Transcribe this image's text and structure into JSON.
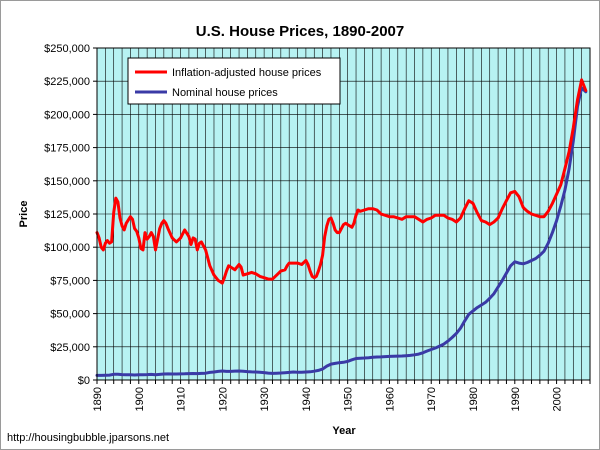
{
  "source_text": "http://housingbubble.jparsons.net",
  "chart_data": {
    "type": "line",
    "title": "U.S. House Prices, 1890-2007",
    "xlabel": "Year",
    "ylabel": "Price",
    "xlim": [
      1890,
      2008
    ],
    "ylim": [
      0,
      250000
    ],
    "x_ticks": [
      1890,
      1900,
      1910,
      1920,
      1930,
      1940,
      1950,
      1960,
      1970,
      1980,
      1990,
      2000
    ],
    "y_ticks": [
      0,
      25000,
      50000,
      75000,
      100000,
      125000,
      150000,
      175000,
      200000,
      225000,
      250000
    ],
    "y_tick_labels": [
      "$0",
      "$25,000",
      "$50,000",
      "$75,000",
      "$100,000",
      "$125,000",
      "$150,000",
      "$175,000",
      "$200,000",
      "$225,000",
      "$250,000"
    ],
    "grid": true,
    "legend_position": "top-left",
    "plot_background": "#b7f2f2",
    "series": [
      {
        "name": "Inflation-adjusted house prices",
        "color": "#ff0000",
        "points": [
          [
            1890,
            111000
          ],
          [
            1890.5,
            107000
          ],
          [
            1891,
            100000
          ],
          [
            1891.5,
            98000
          ],
          [
            1892,
            103000
          ],
          [
            1892.5,
            105000
          ],
          [
            1893,
            103000
          ],
          [
            1893.5,
            104000
          ],
          [
            1894,
            126000
          ],
          [
            1894.5,
            137000
          ],
          [
            1895,
            134000
          ],
          [
            1895.5,
            122000
          ],
          [
            1896,
            116000
          ],
          [
            1896.5,
            113000
          ],
          [
            1897,
            118000
          ],
          [
            1898,
            123000
          ],
          [
            1898.5,
            121000
          ],
          [
            1899,
            114000
          ],
          [
            1899.5,
            112000
          ],
          [
            1900,
            107000
          ],
          [
            1900.5,
            99000
          ],
          [
            1901,
            98000
          ],
          [
            1901.5,
            111000
          ],
          [
            1902,
            106000
          ],
          [
            1902.5,
            108000
          ],
          [
            1903,
            111000
          ],
          [
            1903.5,
            108000
          ],
          [
            1904,
            98000
          ],
          [
            1904.5,
            106000
          ],
          [
            1905,
            114000
          ],
          [
            1905.5,
            118000
          ],
          [
            1906,
            120000
          ],
          [
            1906.5,
            118000
          ],
          [
            1907,
            114000
          ],
          [
            1908,
            107000
          ],
          [
            1909,
            104000
          ],
          [
            1910,
            107000
          ],
          [
            1910.5,
            110000
          ],
          [
            1911,
            113000
          ],
          [
            1912,
            108000
          ],
          [
            1912.5,
            102000
          ],
          [
            1913,
            107000
          ],
          [
            1913.5,
            106000
          ],
          [
            1914,
            98000
          ],
          [
            1914.5,
            103000
          ],
          [
            1915,
            104000
          ],
          [
            1916,
            98000
          ],
          [
            1916.5,
            92000
          ],
          [
            1917,
            86000
          ],
          [
            1918,
            79000
          ],
          [
            1919,
            75000
          ],
          [
            1920,
            73000
          ],
          [
            1920.5,
            77000
          ],
          [
            1921,
            82000
          ],
          [
            1921.5,
            86000
          ],
          [
            1922,
            85000
          ],
          [
            1923,
            83000
          ],
          [
            1923.5,
            85000
          ],
          [
            1924,
            87000
          ],
          [
            1924.5,
            85000
          ],
          [
            1925,
            79000
          ],
          [
            1926,
            80000
          ],
          [
            1927,
            81000
          ],
          [
            1928,
            80000
          ],
          [
            1929,
            78000
          ],
          [
            1930,
            77000
          ],
          [
            1931,
            76000
          ],
          [
            1932,
            76000
          ],
          [
            1933,
            79000
          ],
          [
            1934,
            82000
          ],
          [
            1935,
            83000
          ],
          [
            1935.5,
            86000
          ],
          [
            1936,
            88000
          ],
          [
            1937,
            88000
          ],
          [
            1938,
            88000
          ],
          [
            1939,
            87000
          ],
          [
            1940,
            90000
          ],
          [
            1940.5,
            87000
          ],
          [
            1941,
            82000
          ],
          [
            1941.5,
            78000
          ],
          [
            1942,
            77000
          ],
          [
            1942.5,
            78000
          ],
          [
            1943,
            82000
          ],
          [
            1943.5,
            87000
          ],
          [
            1944,
            94000
          ],
          [
            1944.5,
            108000
          ],
          [
            1945,
            116000
          ],
          [
            1945.5,
            121000
          ],
          [
            1946,
            122000
          ],
          [
            1946.5,
            118000
          ],
          [
            1947,
            113000
          ],
          [
            1947.5,
            111000
          ],
          [
            1948,
            111000
          ],
          [
            1948.5,
            114000
          ],
          [
            1949,
            117000
          ],
          [
            1949.5,
            118000
          ],
          [
            1950,
            117000
          ],
          [
            1951,
            115000
          ],
          [
            1951.5,
            118000
          ],
          [
            1952,
            124000
          ],
          [
            1952.5,
            128000
          ],
          [
            1953,
            127000
          ],
          [
            1954,
            128000
          ],
          [
            1955,
            129000
          ],
          [
            1956,
            129000
          ],
          [
            1957,
            128000
          ],
          [
            1958,
            125000
          ],
          [
            1959,
            124000
          ],
          [
            1960,
            123000
          ],
          [
            1961,
            123000
          ],
          [
            1962,
            122000
          ],
          [
            1963,
            121000
          ],
          [
            1964,
            123000
          ],
          [
            1965,
            123000
          ],
          [
            1966,
            123000
          ],
          [
            1967,
            121000
          ],
          [
            1968,
            119000
          ],
          [
            1969,
            121000
          ],
          [
            1970,
            122000
          ],
          [
            1971,
            124000
          ],
          [
            1972,
            124000
          ],
          [
            1973,
            124000
          ],
          [
            1974,
            122000
          ],
          [
            1975,
            121000
          ],
          [
            1976,
            119000
          ],
          [
            1977,
            122000
          ],
          [
            1978,
            129000
          ],
          [
            1979,
            135000
          ],
          [
            1980,
            133000
          ],
          [
            1981,
            126000
          ],
          [
            1982,
            120000
          ],
          [
            1983,
            119000
          ],
          [
            1984,
            117000
          ],
          [
            1985,
            119000
          ],
          [
            1986,
            122000
          ],
          [
            1987,
            129000
          ],
          [
            1988,
            135000
          ],
          [
            1989,
            141000
          ],
          [
            1990,
            142000
          ],
          [
            1991,
            138000
          ],
          [
            1992,
            130000
          ],
          [
            1993,
            127000
          ],
          [
            1994,
            125000
          ],
          [
            1995,
            124000
          ],
          [
            1996,
            123000
          ],
          [
            1997,
            123000
          ],
          [
            1998,
            127000
          ],
          [
            1999,
            133000
          ],
          [
            2000,
            140000
          ],
          [
            2001,
            147000
          ],
          [
            2002,
            159000
          ],
          [
            2003,
            172000
          ],
          [
            2004,
            190000
          ],
          [
            2005,
            211000
          ],
          [
            2006,
            226000
          ],
          [
            2007,
            218000
          ]
        ]
      },
      {
        "name": "Nominal house prices",
        "color": "#3a3aa6",
        "points": [
          [
            1890,
            3500
          ],
          [
            1891,
            3500
          ],
          [
            1892,
            3600
          ],
          [
            1893,
            3700
          ],
          [
            1894,
            4300
          ],
          [
            1895,
            4400
          ],
          [
            1896,
            4100
          ],
          [
            1897,
            3900
          ],
          [
            1898,
            3900
          ],
          [
            1899,
            3800
          ],
          [
            1900,
            3900
          ],
          [
            1901,
            4000
          ],
          [
            1902,
            4100
          ],
          [
            1903,
            4200
          ],
          [
            1904,
            3900
          ],
          [
            1905,
            4200
          ],
          [
            1906,
            4500
          ],
          [
            1907,
            4600
          ],
          [
            1908,
            4500
          ],
          [
            1909,
            4500
          ],
          [
            1910,
            4600
          ],
          [
            1911,
            4700
          ],
          [
            1912,
            4800
          ],
          [
            1913,
            4900
          ],
          [
            1914,
            4800
          ],
          [
            1915,
            5000
          ],
          [
            1916,
            5100
          ],
          [
            1917,
            5700
          ],
          [
            1918,
            6000
          ],
          [
            1919,
            6500
          ],
          [
            1920,
            6800
          ],
          [
            1921,
            6500
          ],
          [
            1922,
            6500
          ],
          [
            1923,
            6700
          ],
          [
            1924,
            6800
          ],
          [
            1925,
            6600
          ],
          [
            1926,
            6300
          ],
          [
            1927,
            6100
          ],
          [
            1928,
            6000
          ],
          [
            1929,
            5900
          ],
          [
            1930,
            5600
          ],
          [
            1931,
            5200
          ],
          [
            1932,
            5000
          ],
          [
            1933,
            5100
          ],
          [
            1934,
            5300
          ],
          [
            1935,
            5500
          ],
          [
            1936,
            5700
          ],
          [
            1937,
            6000
          ],
          [
            1938,
            5900
          ],
          [
            1939,
            5800
          ],
          [
            1940,
            6000
          ],
          [
            1941,
            6200
          ],
          [
            1942,
            6600
          ],
          [
            1943,
            7200
          ],
          [
            1944,
            8300
          ],
          [
            1945,
            10500
          ],
          [
            1946,
            12000
          ],
          [
            1947,
            12500
          ],
          [
            1948,
            13000
          ],
          [
            1949,
            13300
          ],
          [
            1950,
            14000
          ],
          [
            1951,
            15200
          ],
          [
            1952,
            16200
          ],
          [
            1953,
            16400
          ],
          [
            1954,
            16600
          ],
          [
            1955,
            16800
          ],
          [
            1956,
            17100
          ],
          [
            1957,
            17300
          ],
          [
            1958,
            17400
          ],
          [
            1959,
            17600
          ],
          [
            1960,
            17800
          ],
          [
            1961,
            17900
          ],
          [
            1962,
            18000
          ],
          [
            1963,
            18100
          ],
          [
            1964,
            18300
          ],
          [
            1965,
            18500
          ],
          [
            1966,
            19000
          ],
          [
            1967,
            19500
          ],
          [
            1968,
            20500
          ],
          [
            1969,
            21800
          ],
          [
            1970,
            23000
          ],
          [
            1971,
            24100
          ],
          [
            1972,
            25500
          ],
          [
            1973,
            27000
          ],
          [
            1974,
            29300
          ],
          [
            1975,
            32000
          ],
          [
            1976,
            35000
          ],
          [
            1977,
            39000
          ],
          [
            1978,
            44500
          ],
          [
            1979,
            49500
          ],
          [
            1980,
            52000
          ],
          [
            1981,
            54500
          ],
          [
            1982,
            56500
          ],
          [
            1983,
            58500
          ],
          [
            1984,
            61500
          ],
          [
            1985,
            65000
          ],
          [
            1986,
            70000
          ],
          [
            1987,
            75000
          ],
          [
            1988,
            80500
          ],
          [
            1989,
            86000
          ],
          [
            1990,
            89000
          ],
          [
            1991,
            88000
          ],
          [
            1992,
            87500
          ],
          [
            1993,
            88500
          ],
          [
            1994,
            90000
          ],
          [
            1995,
            91500
          ],
          [
            1996,
            94000
          ],
          [
            1997,
            97000
          ],
          [
            1998,
            103000
          ],
          [
            1999,
            111000
          ],
          [
            2000,
            120000
          ],
          [
            2001,
            131000
          ],
          [
            2002,
            143000
          ],
          [
            2003,
            159000
          ],
          [
            2004,
            180000
          ],
          [
            2005,
            206000
          ],
          [
            2006,
            220000
          ],
          [
            2007,
            217000
          ]
        ]
      }
    ]
  }
}
